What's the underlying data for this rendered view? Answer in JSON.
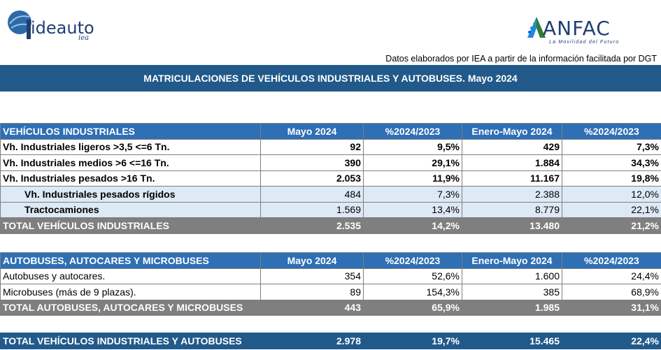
{
  "logos": {
    "ideauto": {
      "brand": "ideauto",
      "sub": "iea"
    },
    "anfac": {
      "brand": "ANFAC",
      "sub": "La Movilidad del Futuro"
    }
  },
  "source_note": "Datos elaborados por IEA a partir de la información facilitada por DGT",
  "title": "MATRICULACIONES DE VEHÍCULOS INDUSTRIALES Y AUTOBUSES.  Mayo 2024",
  "colors": {
    "title_bg": "#215a8a",
    "header_bg": "#2e6fb5",
    "total_bg": "#7f7f7f",
    "sub_bg": "#dde9f5"
  },
  "industrial": {
    "headers": [
      "VEHÍCULOS INDUSTRIALES",
      "Mayo 2024",
      "%2024/2023",
      "Enero-Mayo 2024",
      "%2024/2023"
    ],
    "rows": [
      [
        "Vh. Industriales ligeros >3,5 <=6 Tn.",
        "92",
        "9,5%",
        "429",
        "7,3%"
      ],
      [
        "Vh. Industriales medios >6  <=16 Tn.",
        "390",
        "29,1%",
        "1.884",
        "34,3%"
      ],
      [
        "Vh. Industriales  pesados >16 Tn.",
        "2.053",
        "11,9%",
        "11.167",
        "19,8%"
      ],
      [
        "Vh. Industriales pesados rígidos",
        "484",
        "7,3%",
        "2.388",
        "12,0%"
      ],
      [
        "Tractocamiones",
        "1.569",
        "13,4%",
        "8.779",
        "22,1%"
      ]
    ],
    "total": [
      "TOTAL VEHÍCULOS INDUSTRIALES",
      "2.535",
      "14,2%",
      "13.480",
      "21,2%"
    ]
  },
  "buses": {
    "headers": [
      "AUTOBUSES, AUTOCARES Y MICROBUSES",
      "Mayo 2024",
      "%2024/2023",
      "Enero-Mayo 2024",
      "%2024/2023"
    ],
    "rows": [
      [
        "Autobuses y autocares.",
        "354",
        "52,6%",
        "1.600",
        "24,4%"
      ],
      [
        "Microbuses (más de 9 plazas).",
        "89",
        "154,3%",
        "385",
        "68,9%"
      ]
    ],
    "total": [
      "TOTAL AUTOBUSES, AUTOCARES Y MICROBUSES",
      "443",
      "65,9%",
      "1.985",
      "31,1%"
    ]
  },
  "grand_total": [
    "TOTAL VEHÍCULOS INDUSTRIALES Y AUTOBUSES",
    "2.978",
    "19,7%",
    "15.465",
    "22,4%"
  ]
}
